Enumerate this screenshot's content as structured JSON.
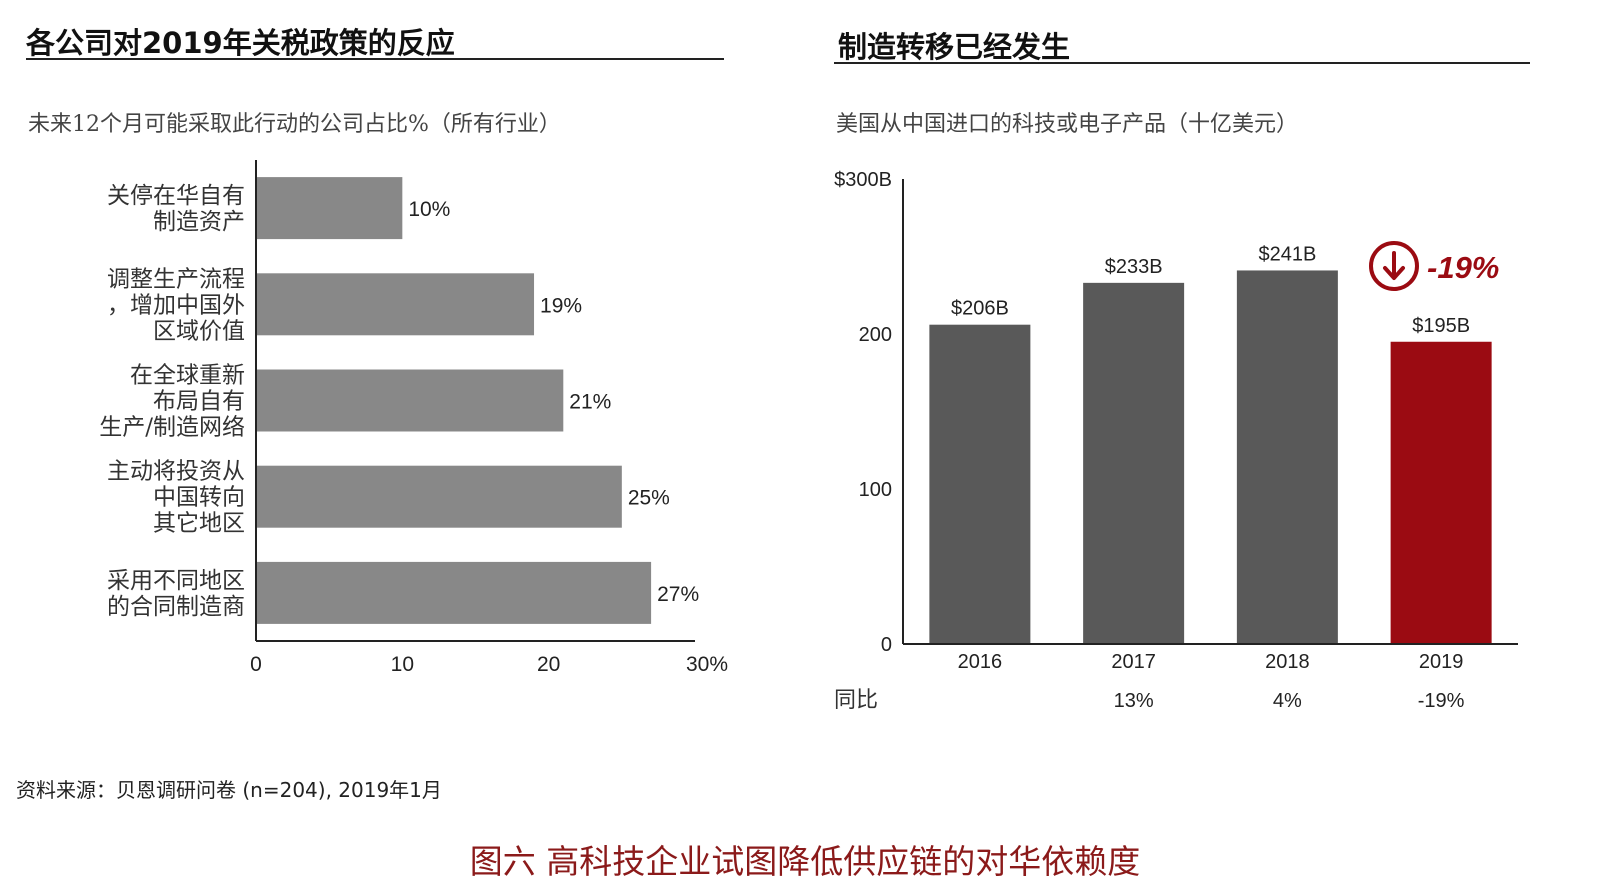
{
  "left_panel": {
    "title": "各公司对2019年关税政策的反应",
    "subtitle": "未来12个月可能采取此行动的公司占比%（所有行业）"
  },
  "right_panel": {
    "title": "制造转移已经发生",
    "subtitle": "美国从中国进口的科技或电子产品（十亿美元）",
    "yoy_label": "同比",
    "change_badge": "-19%"
  },
  "source": "资料来源：贝恩调研问卷 (n=204), 2019年1月",
  "figure_caption": "图六 高科技企业试图降低供应链的对华依赖度",
  "colors": {
    "bar_gray": "#888888",
    "bar_dark": "#595959",
    "accent_red": "#9b0b12",
    "caption_red": "#8b1a1a"
  },
  "chart_data": [
    {
      "type": "bar",
      "orientation": "horizontal",
      "title": "各公司对2019年关税政策的反应",
      "subtitle": "未来12个月可能采取此行动的公司占比%（所有行业）",
      "categories": [
        [
          "关停在华自有",
          "制造资产"
        ],
        [
          "调整生产流程",
          "，增加中国外",
          "区域价值"
        ],
        [
          "在全球重新",
          "布局自有",
          "生产/制造网络"
        ],
        [
          "主动将投资从",
          "中国转向",
          "其它地区"
        ],
        [
          "采用不同地区",
          "的合同制造商"
        ]
      ],
      "values": [
        10,
        19,
        21,
        25,
        27
      ],
      "value_labels": [
        "10%",
        "19%",
        "21%",
        "25%",
        "27%"
      ],
      "xlim": [
        0,
        30
      ],
      "xticks": [
        0,
        10,
        20,
        30
      ],
      "xtick_labels": [
        "0",
        "10",
        "20",
        "30%"
      ]
    },
    {
      "type": "bar",
      "orientation": "vertical",
      "title": "制造转移已经发生",
      "subtitle": "美国从中国进口的科技或电子产品（十亿美元）",
      "categories": [
        "2016",
        "2017",
        "2018",
        "2019"
      ],
      "values": [
        206,
        233,
        241,
        195
      ],
      "value_labels": [
        "$206B",
        "$233B",
        "$241B",
        "$195B"
      ],
      "highlight_index": 3,
      "ylim": [
        0,
        300
      ],
      "yticks": [
        0,
        100,
        200,
        300
      ],
      "ytick_labels": [
        "0",
        "100",
        "200",
        "$300B"
      ],
      "yoy_label": "同比",
      "yoy": [
        "",
        "13%",
        "4%",
        "-19%"
      ],
      "annotation": "-19%"
    }
  ]
}
